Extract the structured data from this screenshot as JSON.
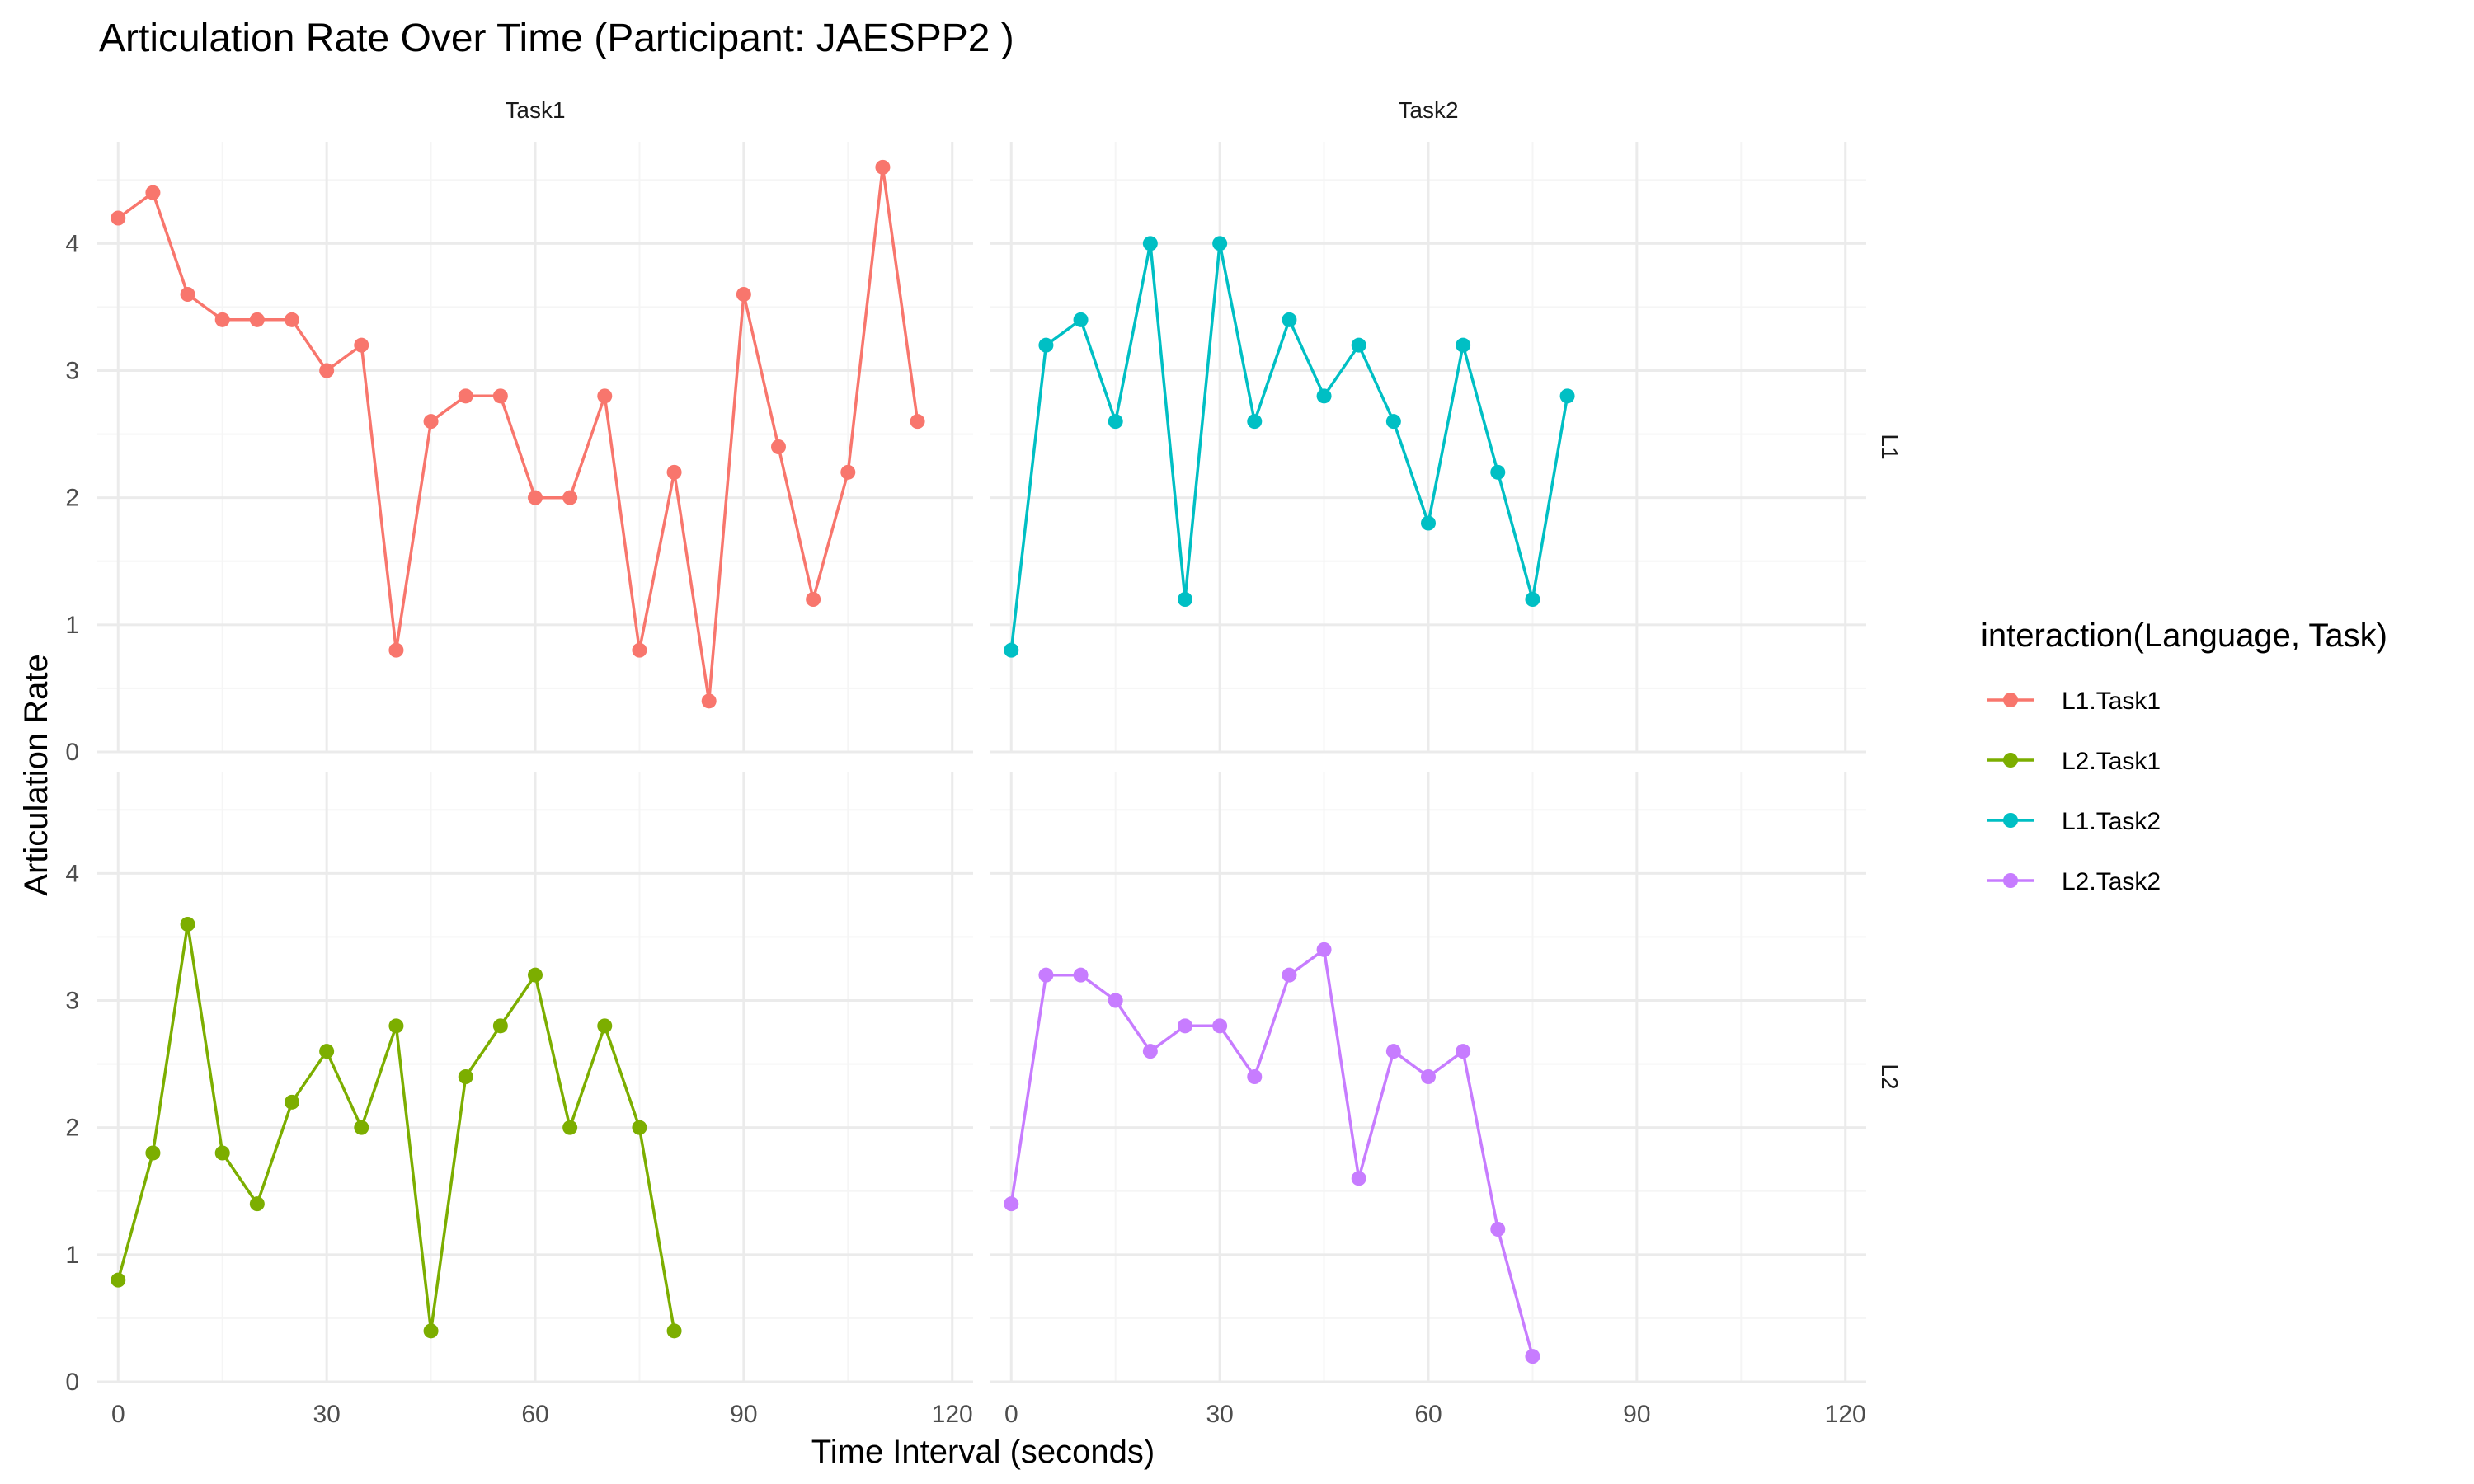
{
  "chart_data": {
    "type": "line",
    "title": "Articulation Rate Over Time (Participant: JAESPP2 )",
    "xlabel": "Time Interval (seconds)",
    "ylabel": "Articulation Rate",
    "xlim": [
      -3,
      123
    ],
    "ylim": [
      0,
      4.8
    ],
    "x_ticks": [
      0,
      30,
      60,
      90,
      120
    ],
    "y_ticks": [
      0,
      1,
      2,
      3,
      4
    ],
    "x_tick_labels": [
      "0",
      "30",
      "60",
      "90",
      "120"
    ],
    "y_tick_labels": [
      "0",
      "1",
      "2",
      "3",
      "4"
    ],
    "columns": [
      "Task1",
      "Task2"
    ],
    "rows": [
      "L1",
      "L2"
    ],
    "legend": {
      "title": "interaction(Language, Task)",
      "position": "right",
      "entries": [
        "L1.Task1",
        "L2.Task1",
        "L1.Task2",
        "L2.Task2"
      ]
    },
    "grid": true,
    "series": [
      {
        "name": "L1.Task1",
        "row": "L1",
        "column": "Task1",
        "color": "#F8766D",
        "x": [
          0,
          5,
          10,
          15,
          20,
          25,
          30,
          35,
          40,
          45,
          50,
          55,
          60,
          65,
          70,
          75,
          80,
          85,
          90,
          95,
          100,
          105,
          110,
          115
        ],
        "y": [
          4.2,
          4.4,
          3.6,
          3.4,
          3.4,
          3.4,
          3.0,
          3.2,
          0.8,
          2.6,
          2.8,
          2.8,
          2.0,
          2.0,
          2.8,
          0.8,
          2.2,
          0.4,
          3.6,
          2.4,
          1.2,
          2.2,
          4.6,
          2.6
        ]
      },
      {
        "name": "L1.Task2",
        "row": "L1",
        "column": "Task2",
        "color": "#00BFC4",
        "x": [
          0,
          5,
          10,
          15,
          20,
          25,
          30,
          35,
          40,
          45,
          50,
          55,
          60,
          65,
          70,
          75,
          80
        ],
        "y": [
          0.8,
          3.2,
          3.4,
          2.6,
          4.0,
          1.2,
          4.0,
          2.6,
          3.4,
          2.8,
          3.2,
          2.6,
          1.8,
          3.2,
          2.2,
          1.2,
          2.8
        ]
      },
      {
        "name": "L2.Task1",
        "row": "L2",
        "column": "Task1",
        "color": "#7CAE00",
        "x": [
          0,
          5,
          10,
          15,
          20,
          25,
          30,
          35,
          40,
          45,
          50,
          55,
          60,
          65,
          70,
          75,
          80
        ],
        "y": [
          0.8,
          1.8,
          3.6,
          1.8,
          1.4,
          2.2,
          2.6,
          2.0,
          2.8,
          0.4,
          2.4,
          2.8,
          3.2,
          2.0,
          2.8,
          2.0,
          0.4
        ]
      },
      {
        "name": "L2.Task2",
        "row": "L2",
        "column": "Task2",
        "color": "#C77CFF",
        "x": [
          0,
          5,
          10,
          15,
          20,
          25,
          30,
          35,
          40,
          45,
          50,
          55,
          60,
          65,
          70,
          75
        ],
        "y": [
          1.4,
          3.2,
          3.2,
          3.0,
          2.6,
          2.8,
          2.8,
          2.4,
          3.2,
          3.4,
          1.6,
          2.6,
          2.4,
          2.6,
          1.2,
          0.2
        ]
      }
    ]
  },
  "colors": {
    "grid_major": "#EBEBEB",
    "grid_minor": "#F5F5F5",
    "text_dark": "#000000",
    "tick_text": "#4D4D4D"
  }
}
